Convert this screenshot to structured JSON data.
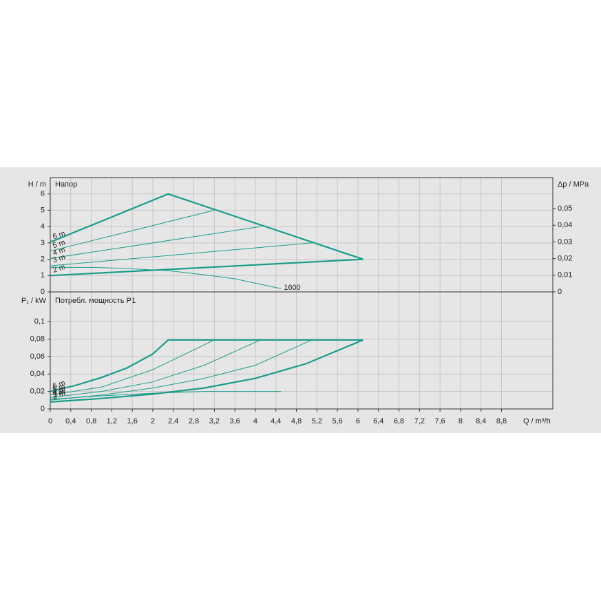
{
  "chart_data": [
    {
      "type": "line",
      "title": "Напор",
      "y_label": "H / m",
      "y2_label": "Δp / MPa",
      "xlim": [
        0,
        9.8
      ],
      "ylim": [
        0,
        7
      ],
      "yticks": [
        0,
        1,
        2,
        3,
        4,
        5,
        6
      ],
      "y2lim": [
        0,
        0.0686
      ],
      "y2ticks": [
        0,
        {
          "value": 0.01,
          "label": "0,01"
        },
        {
          "value": 0.02,
          "label": "0,02"
        },
        {
          "value": 0.03,
          "label": "0,03"
        },
        {
          "value": 0.04,
          "label": "0,04"
        },
        {
          "value": 0.05,
          "label": "0,05"
        }
      ],
      "grid": true,
      "series": [
        {
          "name": "6 m",
          "color": "#1a9c8a",
          "line_width": 2.2,
          "label_position": "start",
          "x": [
            0,
            2.3,
            6.1
          ],
          "values": [
            3.05,
            6,
            2
          ]
        },
        {
          "name": "5 m",
          "color": "#1a9c8a",
          "line_width": 1,
          "label_position": "start",
          "x": [
            0,
            3.2
          ],
          "values": [
            2.5,
            5
          ]
        },
        {
          "name": "4 m",
          "color": "#1a9c8a",
          "line_width": 1,
          "label_position": "start",
          "x": [
            0,
            4.1
          ],
          "values": [
            2.05,
            4
          ]
        },
        {
          "name": "3 m",
          "color": "#1a9c8a",
          "line_width": 1,
          "label_position": "start",
          "x": [
            0,
            5.1
          ],
          "values": [
            1.6,
            3
          ]
        },
        {
          "name": "2 m",
          "color": "#1a9c8a",
          "line_width": 2.2,
          "label_position": "start",
          "x": [
            0,
            6.1
          ],
          "values": [
            1,
            2
          ]
        },
        {
          "name": "1600",
          "color": "#1a9c8a",
          "line_width": 1,
          "label_position": "end",
          "x": [
            0,
            0.8,
            1.4,
            2.3,
            3,
            3.6,
            4.5
          ],
          "values": [
            1.5,
            1.5,
            1.45,
            1.3,
            1.05,
            0.8,
            0.2
          ]
        }
      ]
    },
    {
      "type": "line",
      "title": "Потребл. мощность P1",
      "y_label": "P₁ / kW",
      "x_label": "Q / m³/h",
      "xlim": [
        0,
        9.8
      ],
      "xticks": [
        0,
        {
          "value": 0.4,
          "label": "0,4"
        },
        {
          "value": 0.8,
          "label": "0,8"
        },
        {
          "value": 1.2,
          "label": "1,2"
        },
        {
          "value": 1.6,
          "label": "1,6"
        },
        2,
        {
          "value": 2.4,
          "label": "2,4"
        },
        {
          "value": 2.8,
          "label": "2,8"
        },
        {
          "value": 3.2,
          "label": "3,2"
        },
        {
          "value": 3.6,
          "label": "3,6"
        },
        4,
        {
          "value": 4.4,
          "label": "4,4"
        },
        {
          "value": 4.8,
          "label": "4,8"
        },
        {
          "value": 5.2,
          "label": "5,2"
        },
        {
          "value": 5.6,
          "label": "5,6"
        },
        6,
        {
          "value": 6.4,
          "label": "6,4"
        },
        {
          "value": 6.8,
          "label": "6,8"
        },
        {
          "value": 7.2,
          "label": "7,2"
        },
        {
          "value": 7.6,
          "label": "7,6"
        },
        8,
        {
          "value": 8.4,
          "label": "8,4"
        },
        {
          "value": 8.8,
          "label": "8,8"
        }
      ],
      "ylim": [
        0,
        0.134
      ],
      "yticks": [
        0,
        {
          "value": 0.02,
          "label": "0,02"
        },
        {
          "value": 0.04,
          "label": "0,04"
        },
        {
          "value": 0.06,
          "label": "0,06"
        },
        {
          "value": 0.08,
          "label": "0,08"
        },
        {
          "value": 0.1,
          "label": "0,1"
        }
      ],
      "grid": true,
      "series": [
        {
          "name": "6 m",
          "color": "#1a9c8a",
          "line_width": 2.2,
          "label_position": "start",
          "x": [
            0,
            0.5,
            1,
            1.5,
            2,
            2.3,
            6.1
          ],
          "values": [
            0.02,
            0.027,
            0.036,
            0.047,
            0.063,
            0.079,
            0.079
          ]
        },
        {
          "name": "5 m",
          "color": "#1a9c8a",
          "line_width": 1,
          "label_position": "start",
          "x": [
            0,
            1,
            2,
            3.2
          ],
          "values": [
            0.016,
            0.025,
            0.045,
            0.079
          ]
        },
        {
          "name": "4 m",
          "color": "#1a9c8a",
          "line_width": 1,
          "label_position": "start",
          "x": [
            0,
            1,
            2,
            3,
            4.1
          ],
          "values": [
            0.013,
            0.02,
            0.031,
            0.05,
            0.079
          ]
        },
        {
          "name": "3 m",
          "color": "#1a9c8a",
          "line_width": 1,
          "label_position": "start",
          "x": [
            0,
            1,
            2,
            3,
            4,
            5.1
          ],
          "values": [
            0.01,
            0.016,
            0.024,
            0.035,
            0.05,
            0.079
          ]
        },
        {
          "name": "2 m",
          "color": "#1a9c8a",
          "line_width": 2.2,
          "label_position": "start",
          "x": [
            0,
            1,
            2,
            3,
            4,
            5,
            6.1
          ],
          "values": [
            0.008,
            0.012,
            0.017,
            0.024,
            0.035,
            0.052,
            0.079
          ]
        },
        {
          "name": "1600",
          "color": "#1a9c8a",
          "line_width": 1,
          "label_position": "none",
          "x": [
            0,
            1,
            2,
            3,
            4.5
          ],
          "values": [
            0.011,
            0.015,
            0.018,
            0.02,
            0.02
          ]
        }
      ]
    }
  ]
}
